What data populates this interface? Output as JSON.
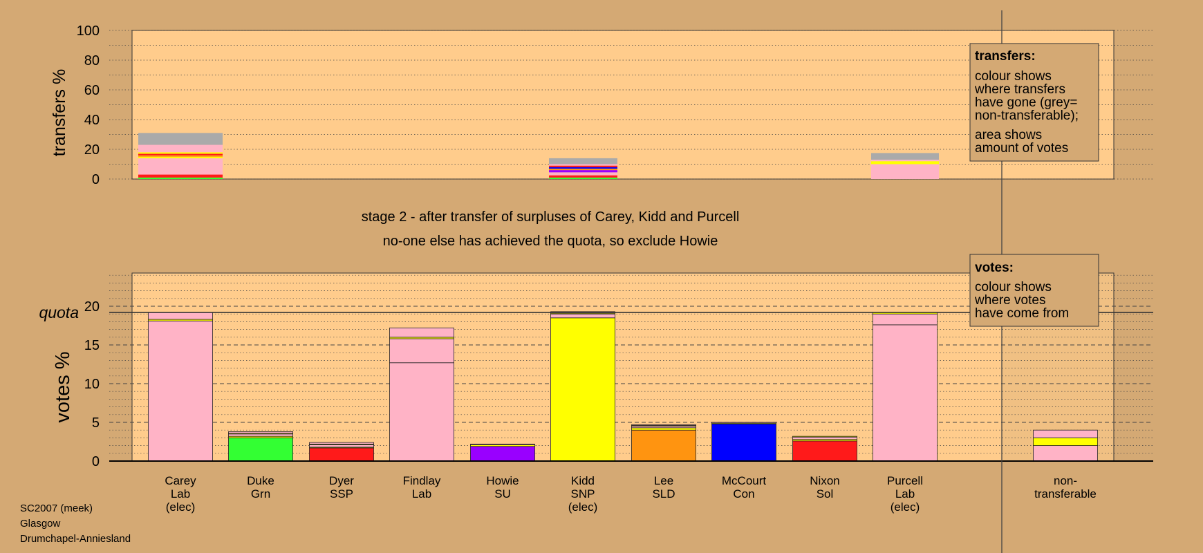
{
  "colors": {
    "background": "#d4a974",
    "plot": "#ffcc8c",
    "Lab": "#ffb3c6",
    "Grn": "#33ff33",
    "SSP": "#ff1a1a",
    "SU": "#9900ff",
    "SNP": "#ffff00",
    "SLD": "#ff9410",
    "Con": "#0000ff",
    "Sol": "#ff1a1a",
    "nontransferable": "#aaaaaa"
  },
  "headline": {
    "line1": "stage 2 - after transfer of surpluses of Carey, Kidd and Purcell",
    "line2": "no-one else has achieved the quota, so exclude Howie"
  },
  "transfers_legend": {
    "title": "transfers:",
    "para1": [
      "colour shows",
      "where transfers",
      "have gone (grey=",
      "non-transferable);"
    ],
    "para2": [
      "area shows",
      "amount of votes"
    ]
  },
  "votes_legend": {
    "title": "votes:",
    "para1": [
      "colour shows",
      "where votes",
      "have come from"
    ]
  },
  "footer": {
    "line1": "SC2007 (meek)",
    "line2": "Glasgow",
    "line3": "Drumchapel-Anniesland"
  },
  "chart_data": [
    {
      "type": "bar",
      "ylabel": "transfers %",
      "ylim": [
        0,
        100
      ],
      "yticks": [
        0,
        20,
        40,
        60,
        80,
        100
      ],
      "columns": [
        {
          "candidate": "Carey",
          "segments": [
            {
              "color": "Grn",
              "value": 1
            },
            {
              "color": "SSP",
              "value": 2
            },
            {
              "color": "Lab",
              "value": 11
            },
            {
              "color": "SNP",
              "value": 1
            },
            {
              "color": "SLD",
              "value": 1
            },
            {
              "color": "SSP",
              "value": 1
            },
            {
              "color": "SNP",
              "value": 1
            },
            {
              "color": "Lab",
              "value": 5
            },
            {
              "color": "nontransferable",
              "value": 8
            }
          ]
        },
        {
          "candidate": "Kidd",
          "segments": [
            {
              "color": "Grn",
              "value": 1
            },
            {
              "color": "SSP",
              "value": 1.5
            },
            {
              "color": "Lab",
              "value": 2
            },
            {
              "color": "SU",
              "value": 1.5
            },
            {
              "color": "SLD",
              "value": 1
            },
            {
              "color": "Con",
              "value": 1
            },
            {
              "color": "SSP",
              "value": 1
            },
            {
              "color": "Lab",
              "value": 1
            },
            {
              "color": "nontransferable",
              "value": 4
            }
          ]
        },
        {
          "candidate": "Purcell",
          "segments": [
            {
              "color": "Lab",
              "value": 4
            },
            {
              "color": "Lab",
              "value": 6
            },
            {
              "color": "SNP",
              "value": 2
            },
            {
              "color": "Lab",
              "value": 1
            },
            {
              "color": "nontransferable",
              "value": 4.5
            }
          ]
        }
      ]
    },
    {
      "type": "bar",
      "ylabel": "votes %",
      "quota_label": "quota",
      "quota": 19.2,
      "ylim": [
        0,
        24.5
      ],
      "yticks": [
        0,
        5,
        10,
        15,
        20
      ],
      "categories": [
        {
          "name": "Carey",
          "party": "Lab",
          "note": "(elec)"
        },
        {
          "name": "Duke",
          "party": "Grn",
          "note": ""
        },
        {
          "name": "Dyer",
          "party": "SSP",
          "note": ""
        },
        {
          "name": "Findlay",
          "party": "Lab",
          "note": ""
        },
        {
          "name": "Howie",
          "party": "SU",
          "note": ""
        },
        {
          "name": "Kidd",
          "party": "SNP",
          "note": "(elec)"
        },
        {
          "name": "Lee",
          "party": "SLD",
          "note": ""
        },
        {
          "name": "McCourt",
          "party": "Con",
          "note": ""
        },
        {
          "name": "Nixon",
          "party": "Sol",
          "note": ""
        },
        {
          "name": "Purcell",
          "party": "Lab",
          "note": "(elec)"
        },
        {
          "name": "non-",
          "party": "transferable",
          "note": ""
        }
      ],
      "stacks": [
        [
          {
            "color": "Lab",
            "value": 18.1
          },
          {
            "color": "SNP",
            "value": 0.2
          },
          {
            "color": "Lab",
            "value": 0.9
          }
        ],
        [
          {
            "color": "Grn",
            "value": 3.0
          },
          {
            "color": "SNP",
            "value": 0.2
          },
          {
            "color": "Lab",
            "value": 0.3
          },
          {
            "color": "SNP",
            "value": 0.1
          },
          {
            "color": "Lab",
            "value": 0.2
          }
        ],
        [
          {
            "color": "SSP",
            "value": 1.7
          },
          {
            "color": "SNP",
            "value": 0.1
          },
          {
            "color": "Lab",
            "value": 0.3
          },
          {
            "color": "SNP",
            "value": 0.1
          },
          {
            "color": "Lab",
            "value": 0.2
          }
        ],
        [
          {
            "color": "Lab",
            "value": 12.7
          },
          {
            "color": "Lab",
            "value": 3.1
          },
          {
            "color": "SNP",
            "value": 0.2
          },
          {
            "color": "Lab",
            "value": 1.2
          }
        ],
        [
          {
            "color": "SU",
            "value": 1.9
          },
          {
            "color": "SNP",
            "value": 0.2
          },
          {
            "color": "Lab",
            "value": 0.1
          }
        ],
        [
          {
            "color": "SNP",
            "value": 18.5
          },
          {
            "color": "Lab",
            "value": 0.5
          },
          {
            "color": "SNP",
            "value": 0.1
          },
          {
            "color": "Lab",
            "value": 0.2
          }
        ],
        [
          {
            "color": "SLD",
            "value": 4.0
          },
          {
            "color": "SNP",
            "value": 0.3
          },
          {
            "color": "Lab",
            "value": 0.2
          },
          {
            "color": "SNP",
            "value": 0.1
          },
          {
            "color": "Lab",
            "value": 0.1
          }
        ],
        [
          {
            "color": "Con",
            "value": 4.8
          },
          {
            "color": "SNP",
            "value": 0.1
          },
          {
            "color": "Lab",
            "value": 0.1
          }
        ],
        [
          {
            "color": "Sol",
            "value": 2.6
          },
          {
            "color": "SNP",
            "value": 0.2
          },
          {
            "color": "Lab",
            "value": 0.3
          },
          {
            "color": "SNP",
            "value": 0.1
          }
        ],
        [
          {
            "color": "Lab",
            "value": 17.6
          },
          {
            "color": "Lab",
            "value": 1.4
          },
          {
            "color": "SNP",
            "value": 0.2
          }
        ],
        [
          {
            "color": "Lab",
            "value": 2.0
          },
          {
            "color": "SNP",
            "value": 1.0
          },
          {
            "color": "Lab",
            "value": 1.0
          }
        ]
      ]
    }
  ]
}
